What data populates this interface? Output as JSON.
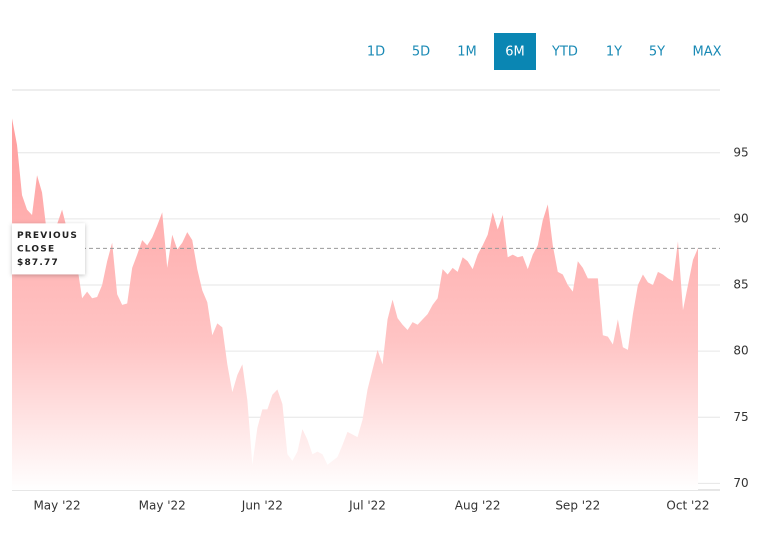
{
  "range_buttons": [
    "1D",
    "5D",
    "1M",
    "6M",
    "YTD",
    "1Y",
    "5Y",
    "MAX"
  ],
  "active": "6M",
  "chart_data": {
    "type": "area",
    "color": "#ff9e9e",
    "values": [
      97.6,
      95.6,
      91.8,
      90.7,
      90.3,
      93.3,
      92.0,
      88.8,
      89.2,
      89.6,
      90.7,
      89.2,
      88.0,
      86.5,
      84.0,
      84.5,
      84.0,
      84.1,
      85.0,
      86.8,
      88.2,
      84.3,
      83.5,
      83.6,
      86.3,
      87.3,
      88.4,
      88.0,
      88.6,
      89.5,
      90.5,
      86.3,
      88.8,
      87.7,
      88.2,
      89.0,
      88.4,
      86.2,
      84.6,
      83.7,
      81.2,
      82.1,
      81.8,
      79.0,
      76.9,
      78.2,
      79.0,
      76.3,
      71.4,
      74.2,
      75.6,
      75.6,
      76.7,
      77.1,
      76.0,
      72.2,
      71.7,
      72.4,
      74.1,
      73.3,
      72.2,
      72.4,
      72.2,
      71.4,
      71.7,
      72.0,
      72.9,
      73.9,
      73.7,
      73.5,
      74.8,
      77.1,
      78.6,
      80.1,
      79.0,
      82.4,
      83.9,
      82.5,
      82.0,
      81.6,
      82.2,
      82.0,
      82.4,
      82.8,
      83.5,
      84.0,
      86.2,
      85.8,
      86.3,
      86.0,
      87.1,
      86.8,
      86.2,
      87.3,
      88.0,
      88.8,
      90.5,
      89.2,
      90.3,
      87.1,
      87.3,
      87.1,
      87.2,
      86.2,
      87.3,
      88.0,
      89.9,
      91.1,
      88.0,
      86.0,
      85.8,
      85.0,
      84.5,
      86.8,
      86.3,
      85.5,
      85.5,
      85.5,
      81.2,
      81.1,
      80.5,
      82.4,
      80.3,
      80.1,
      82.8,
      85.0,
      85.8,
      85.2,
      85.0,
      86.0,
      85.8,
      85.5,
      85.3,
      88.3,
      83.1,
      85.0,
      86.9,
      87.8
    ],
    "xlim": [
      0,
      137
    ],
    "xticks": [
      {
        "value": 9,
        "label": "May '22"
      },
      {
        "value": 30,
        "label": "May '22"
      },
      {
        "value": 50,
        "label": "Jun '22"
      },
      {
        "value": 71,
        "label": "Jul '22"
      },
      {
        "value": 93,
        "label": "Aug '22"
      },
      {
        "value": 113,
        "label": "Sep '22"
      },
      {
        "value": 135,
        "label": "Oct '22"
      }
    ],
    "ylim": [
      69.5,
      99.75
    ],
    "yticks": [
      95,
      90,
      85,
      80,
      75,
      70
    ],
    "grid": true,
    "previous_close": {
      "value": 87.77,
      "label": "$87.77",
      "title_lines": [
        "PREVIOUS",
        "CLOSE"
      ]
    }
  }
}
